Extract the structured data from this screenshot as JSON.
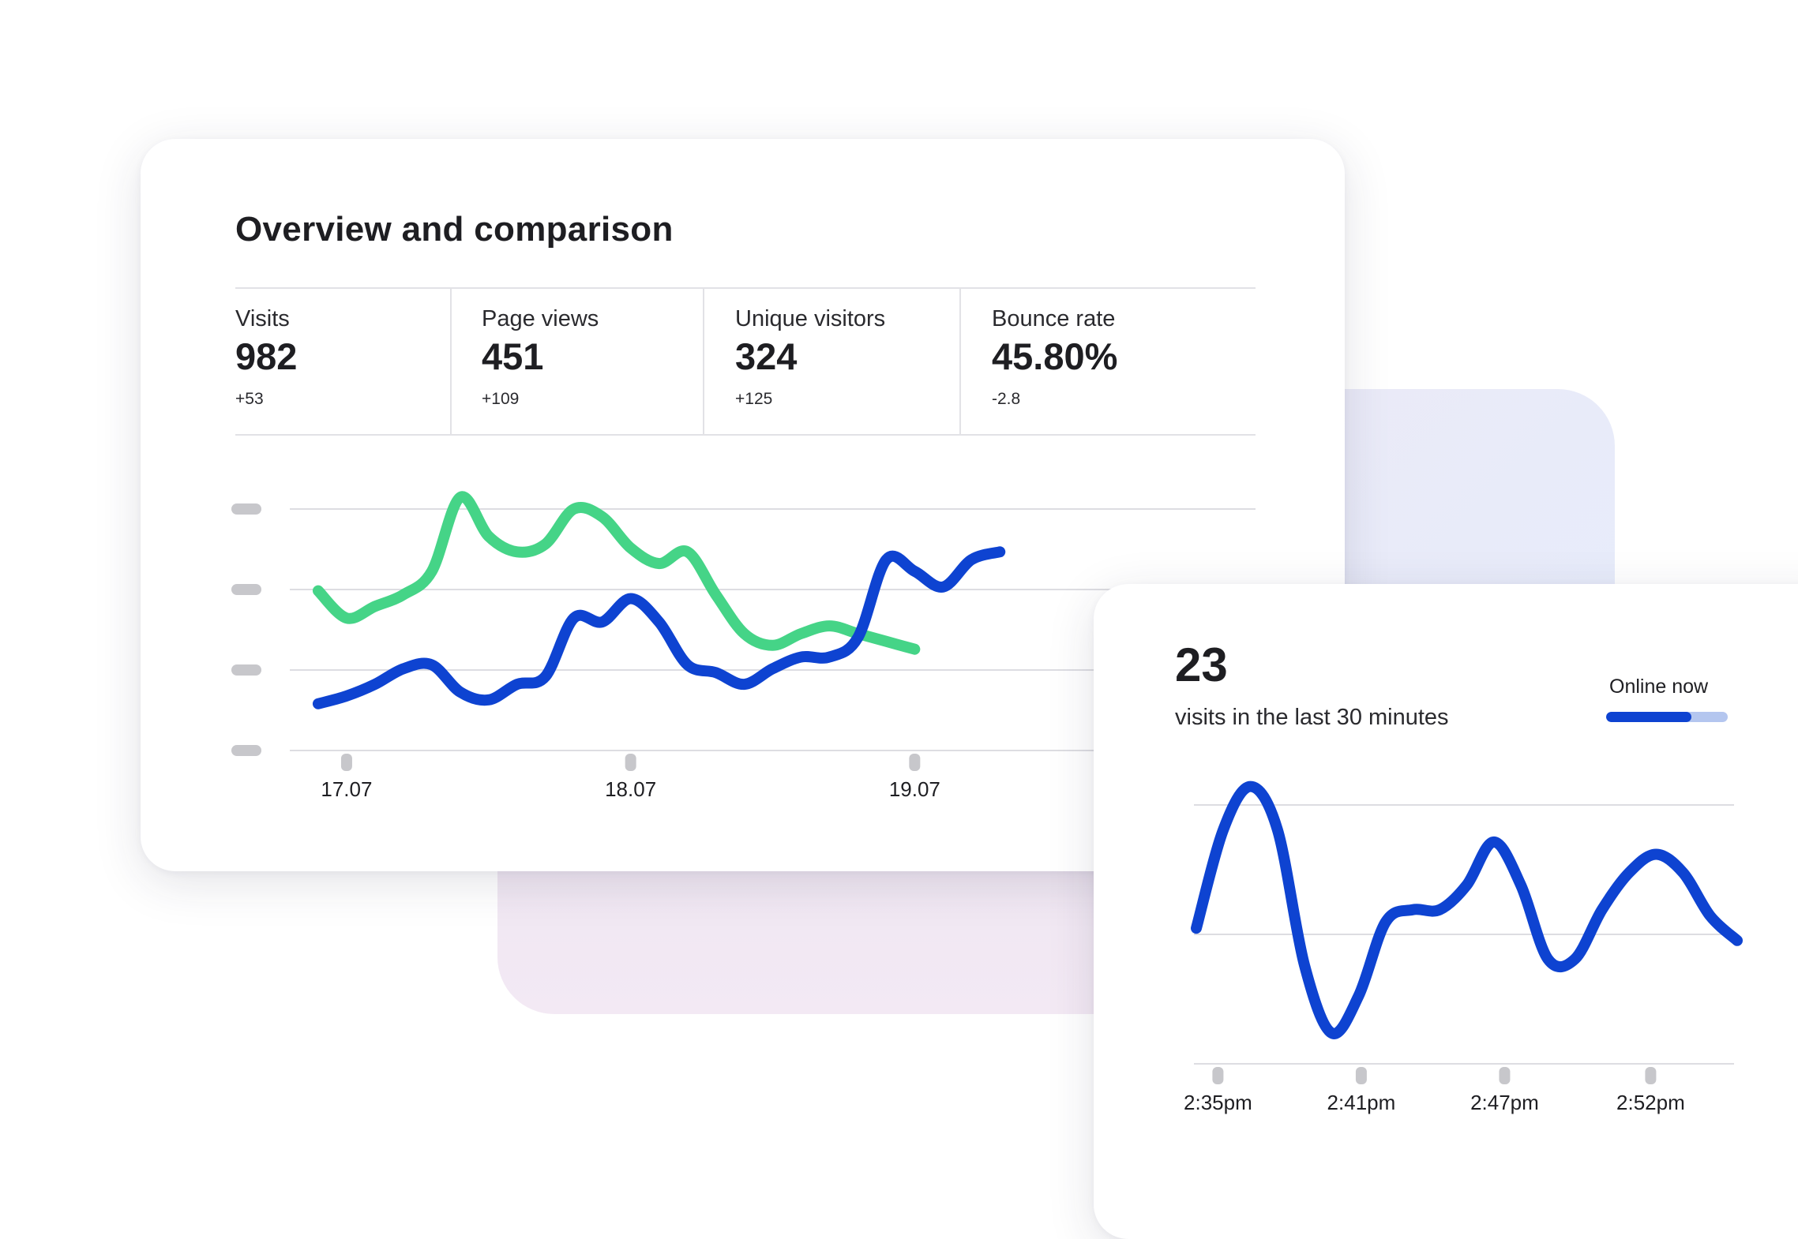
{
  "overview": {
    "title": "Overview and comparison",
    "metrics": [
      {
        "label": "Visits",
        "value": "982",
        "delta": "+53"
      },
      {
        "label": "Page views",
        "value": "451",
        "delta": "+109"
      },
      {
        "label": "Unique visitors",
        "value": "324",
        "delta": "+125"
      },
      {
        "label": "Bounce rate",
        "value": "45.80%",
        "delta": "-2.8"
      }
    ]
  },
  "live": {
    "count": "23",
    "caption": "visits in the last 30 minutes",
    "online_label": "Online now",
    "online_level": 0.7
  },
  "colors": {
    "blue": "#0e43d1",
    "green": "#45d487",
    "grid": "#dddde2",
    "tick": "#c7c7cb"
  },
  "chart_data": [
    {
      "type": "line",
      "title": "",
      "xlabel": "",
      "ylabel": "",
      "x_ticks": [
        "17.07",
        "18.07",
        "19.07"
      ],
      "x": [
        0,
        0.1,
        0.2,
        0.3,
        0.4,
        0.5,
        0.6,
        0.7,
        0.8,
        0.9,
        1.0,
        1.1,
        1.2,
        1.3,
        1.4,
        1.5,
        1.6,
        1.7,
        1.8,
        1.9,
        2.0,
        2.1,
        2.2,
        2.3,
        2.4,
        2.5,
        2.6,
        2.7,
        2.8,
        2.9,
        3.0,
        3.1,
        3.2,
        3.3
      ],
      "xlim": [
        -0.1,
        3.3
      ],
      "ylim": [
        0,
        3.1
      ],
      "y_ticks_labeled": false,
      "grid": true,
      "legend": "none",
      "series": [
        {
          "color": "#45d487",
          "values": [
            2.05,
            1.7,
            1.85,
            2.0,
            2.3,
            3.25,
            2.75,
            2.55,
            2.65,
            3.1,
            3.0,
            2.6,
            2.4,
            2.55,
            2.0,
            1.5,
            1.35,
            1.5,
            1.6,
            1.5,
            1.4,
            1.3,
            null,
            null,
            null,
            null,
            null,
            null,
            null,
            null,
            null,
            null,
            null,
            null
          ]
        },
        {
          "color": "#0e43d1",
          "values": [
            0.6,
            0.7,
            0.85,
            1.05,
            1.1,
            0.75,
            0.65,
            0.85,
            0.95,
            1.7,
            1.65,
            1.95,
            1.65,
            1.1,
            1.0,
            0.85,
            1.05,
            1.2,
            1.2,
            1.45,
            2.45,
            2.3,
            2.1,
            2.45,
            2.55,
            null,
            null,
            null,
            null,
            null,
            null,
            null,
            null,
            null
          ]
        }
      ]
    },
    {
      "type": "line",
      "title": "",
      "xlabel": "",
      "ylabel": "",
      "x_ticks": [
        "2:35pm",
        "2:41pm",
        "2:47pm",
        "2:52pm"
      ],
      "x": [
        0,
        1,
        2,
        3,
        4,
        5,
        6,
        7,
        8,
        9,
        10,
        11,
        12,
        13,
        14,
        15,
        16,
        17,
        18,
        19,
        20
      ],
      "xlim": [
        0,
        20
      ],
      "ylim": [
        0,
        2.1
      ],
      "y_ticks_labeled": false,
      "grid": true,
      "legend": "none",
      "series": [
        {
          "color": "#0e43d1",
          "values": [
            1.1,
            1.9,
            2.25,
            1.9,
            0.8,
            0.25,
            0.55,
            1.15,
            1.25,
            1.25,
            1.45,
            1.8,
            1.45,
            0.85,
            0.85,
            1.25,
            1.55,
            1.7,
            1.55,
            1.2,
            1.0
          ]
        }
      ]
    }
  ]
}
